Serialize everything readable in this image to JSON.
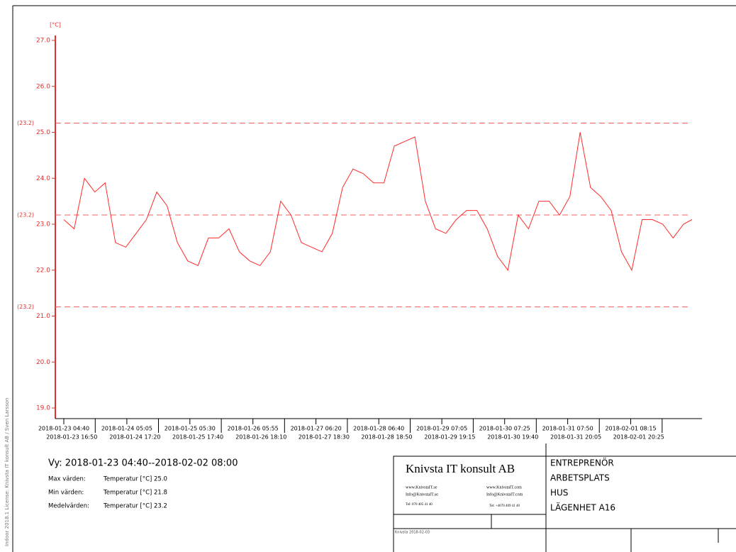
{
  "chart_data": {
    "type": "line",
    "y_unit": "[°C]",
    "color": "#ff2a2a",
    "x": [
      "2018-01-23 04:40",
      "2018-01-23 08:40",
      "2018-01-23 12:40",
      "2018-01-23 16:40",
      "2018-01-23 20:40",
      "2018-01-24 00:40",
      "2018-01-24 04:40",
      "2018-01-24 08:40",
      "2018-01-24 12:40",
      "2018-01-24 16:40",
      "2018-01-24 20:40",
      "2018-01-25 00:40",
      "2018-01-25 04:40",
      "2018-01-25 08:40",
      "2018-01-25 12:40",
      "2018-01-25 16:40",
      "2018-01-25 20:40",
      "2018-01-26 00:40",
      "2018-01-26 04:40",
      "2018-01-26 08:40",
      "2018-01-26 12:40",
      "2018-01-26 16:40",
      "2018-01-26 20:40",
      "2018-01-27 00:40",
      "2018-01-27 04:40",
      "2018-01-27 08:40",
      "2018-01-27 12:40",
      "2018-01-27 16:40",
      "2018-01-27 20:40",
      "2018-01-28 00:40",
      "2018-01-28 04:40",
      "2018-01-28 08:40",
      "2018-01-28 12:40",
      "2018-01-28 16:40",
      "2018-01-28 20:40",
      "2018-01-29 00:40",
      "2018-01-29 04:40",
      "2018-01-29 08:40",
      "2018-01-29 12:40",
      "2018-01-29 16:40",
      "2018-01-29 20:40",
      "2018-01-30 00:40",
      "2018-01-30 04:40",
      "2018-01-30 08:40",
      "2018-01-30 12:40",
      "2018-01-30 16:40",
      "2018-01-30 20:40",
      "2018-01-31 00:40",
      "2018-01-31 04:40",
      "2018-01-31 08:40",
      "2018-01-31 12:40",
      "2018-01-31 16:40",
      "2018-01-31 20:40",
      "2018-02-01 00:40",
      "2018-02-01 04:40",
      "2018-02-01 08:40",
      "2018-02-01 12:40",
      "2018-02-01 16:40",
      "2018-02-01 20:40",
      "2018-02-02 00:40",
      "2018-02-02 04:40",
      "2018-02-02 08:00"
    ],
    "values": [
      23.1,
      22.9,
      24.0,
      23.7,
      23.9,
      22.6,
      22.5,
      22.8,
      23.1,
      23.7,
      23.4,
      22.6,
      22.2,
      22.1,
      22.7,
      22.7,
      22.9,
      22.4,
      22.2,
      22.1,
      22.4,
      23.5,
      23.2,
      22.6,
      22.5,
      22.4,
      22.8,
      23.8,
      24.2,
      24.1,
      23.9,
      23.9,
      24.7,
      24.8,
      24.9,
      23.5,
      22.9,
      22.8,
      23.1,
      23.3,
      23.3,
      22.9,
      22.3,
      22.0,
      23.2,
      22.9,
      23.5,
      23.5,
      23.2,
      23.6,
      25.0,
      23.8,
      23.6,
      23.3,
      22.4,
      22.0,
      23.1,
      23.1,
      23.0,
      22.7,
      23.0,
      23.1
    ],
    "ylim": [
      19,
      27
    ],
    "yticks": [
      {
        "value": 19,
        "label": "19.0"
      },
      {
        "value": 20,
        "label": "20.0"
      },
      {
        "value": 21,
        "label": "21.0"
      },
      {
        "value": 22,
        "label": "22.0"
      },
      {
        "value": 23,
        "label": "23.0"
      },
      {
        "value": 24,
        "label": "24.0"
      },
      {
        "value": 25,
        "label": "25.0"
      },
      {
        "value": 26,
        "label": "26.0"
      },
      {
        "value": 27,
        "label": "27.0"
      }
    ],
    "xlim": [
      "2018-01-23 04:40",
      "2018-02-02 08:00"
    ],
    "xticks": [
      "2018-01-23 04:40",
      "2018-01-23 16:50",
      "2018-01-24 05:05",
      "2018-01-24 17:20",
      "2018-01-25 05:30",
      "2018-01-25 17:40",
      "2018-01-26 05:55",
      "2018-01-26 18:10",
      "2018-01-27 06:20",
      "2018-01-27 18:30",
      "2018-01-28 06:40",
      "2018-01-28 18:50",
      "2018-01-29 07:05",
      "2018-01-29 19:15",
      "2018-01-30 07:25",
      "2018-01-30 19:40",
      "2018-01-31 07:50",
      "2018-01-31 20:05",
      "2018-02-01 08:15",
      "2018-02-01 20:25"
    ],
    "reference_lines": [
      {
        "value": 25.2,
        "label": "(23.2)"
      },
      {
        "value": 23.2,
        "label": "(23.2)"
      },
      {
        "value": 21.2,
        "label": "(23.2)"
      }
    ]
  },
  "side_text": "Indoor 2018.1    License: Knivsta IT konsult AB / Sven Larsson",
  "view": "Vy: 2018-01-23 04:40--2018-02-02 08:00",
  "stats": [
    {
      "label": "Max värden:",
      "text": "Temperatur [°C] 25.0"
    },
    {
      "label": "Min värden:",
      "text": "Temperatur [°C] 21.8"
    },
    {
      "label": "Medelvärden:",
      "text": "Temperatur [°C] 23.2"
    }
  ],
  "title_block": {
    "company": "Knivsta IT konsult AB",
    "web1": "www.KnivstaIT.se",
    "web2": "www.KnivstaIT.com",
    "mail1": "Info@KnivstaIT.se",
    "mail2": "Info@KnivstaIT.com",
    "tel1": "Tel: 070 405 41 40",
    "tel2": "Tel: +4670 409 41 40",
    "fields": [
      "ENTREPRENÖR",
      "ARBETSPLATS",
      "HUS",
      "LÄGENHET A16"
    ],
    "place_date": "Knivsta 2018-02-03"
  }
}
